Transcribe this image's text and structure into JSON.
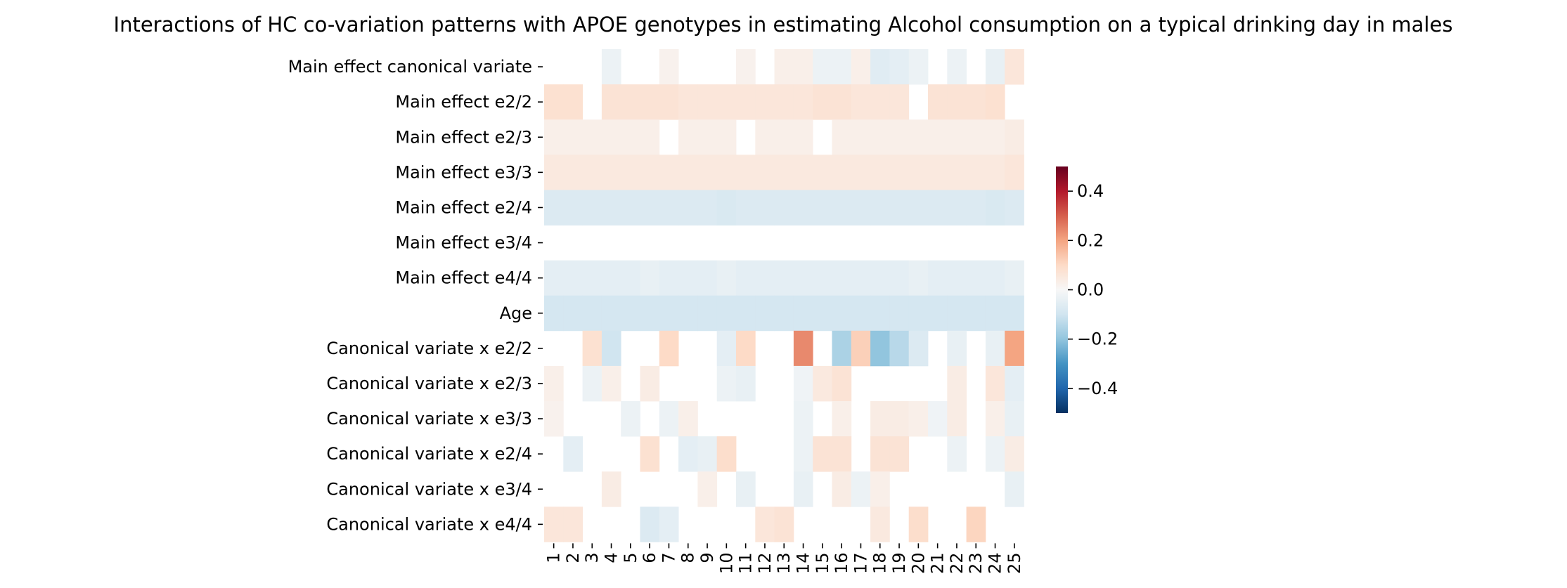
{
  "chart_data": {
    "type": "heatmap",
    "title": "Interactions of HC co-variation patterns with APOE genotypes in estimating Alcohol consumption on a typical drinking day in males",
    "xlabel": "",
    "ylabel": "",
    "x_categories": [
      "1",
      "2",
      "3",
      "4",
      "5",
      "6",
      "7",
      "8",
      "9",
      "10",
      "11",
      "12",
      "13",
      "14",
      "15",
      "16",
      "17",
      "18",
      "19",
      "20",
      "21",
      "22",
      "23",
      "24",
      "25"
    ],
    "y_categories": [
      "Main effect canonical variate",
      "Main effect e2/2",
      "Main effect e2/3",
      "Main effect e3/3",
      "Main effect e2/4",
      "Main effect e3/4",
      "Main effect e4/4",
      "Age",
      "Canonical variate x e2/2",
      "Canonical variate x e2/3",
      "Canonical variate x e3/3",
      "Canonical variate x e2/4",
      "Canonical variate x e3/4",
      "Canonical variate x e4/4"
    ],
    "values": [
      [
        null,
        null,
        null,
        -0.03,
        null,
        null,
        0.02,
        null,
        null,
        null,
        0.02,
        null,
        0.03,
        0.03,
        -0.03,
        -0.03,
        0.03,
        -0.06,
        -0.05,
        -0.03,
        null,
        -0.03,
        null,
        -0.04,
        0.06
      ],
      [
        0.08,
        0.08,
        null,
        0.07,
        0.07,
        0.07,
        0.07,
        0.06,
        0.06,
        0.06,
        0.06,
        0.06,
        0.06,
        0.06,
        0.07,
        0.07,
        0.06,
        0.06,
        0.06,
        null,
        0.07,
        0.07,
        0.07,
        0.08,
        null
      ],
      [
        0.03,
        0.03,
        0.03,
        0.03,
        0.03,
        0.03,
        null,
        0.03,
        0.03,
        0.03,
        null,
        0.03,
        0.03,
        0.03,
        null,
        0.03,
        0.03,
        0.03,
        0.03,
        0.03,
        0.03,
        0.03,
        0.03,
        0.03,
        0.04
      ],
      [
        0.05,
        0.05,
        0.05,
        0.05,
        0.05,
        0.05,
        0.05,
        0.05,
        0.05,
        0.05,
        0.05,
        0.05,
        0.05,
        0.05,
        0.05,
        0.05,
        0.05,
        0.05,
        0.05,
        0.05,
        0.05,
        0.05,
        0.05,
        0.05,
        0.06
      ],
      [
        -0.07,
        -0.07,
        -0.07,
        -0.07,
        -0.07,
        -0.07,
        -0.07,
        -0.07,
        -0.07,
        -0.08,
        -0.07,
        -0.07,
        -0.07,
        -0.07,
        -0.07,
        -0.07,
        -0.07,
        -0.07,
        -0.07,
        -0.07,
        -0.07,
        -0.07,
        -0.07,
        -0.08,
        -0.07
      ],
      [
        null,
        null,
        null,
        null,
        null,
        null,
        null,
        null,
        null,
        null,
        null,
        null,
        null,
        null,
        null,
        null,
        null,
        null,
        null,
        null,
        null,
        null,
        null,
        null,
        null
      ],
      [
        -0.05,
        -0.05,
        -0.05,
        -0.05,
        -0.05,
        -0.04,
        -0.05,
        -0.05,
        -0.05,
        -0.04,
        -0.05,
        -0.05,
        -0.05,
        -0.05,
        -0.05,
        -0.05,
        -0.05,
        -0.05,
        -0.05,
        -0.04,
        -0.05,
        -0.05,
        -0.05,
        -0.05,
        -0.04
      ],
      [
        -0.09,
        -0.09,
        -0.09,
        -0.09,
        -0.09,
        -0.09,
        -0.09,
        -0.09,
        -0.09,
        -0.09,
        -0.09,
        -0.09,
        -0.09,
        -0.09,
        -0.09,
        -0.09,
        -0.09,
        -0.09,
        -0.09,
        -0.09,
        -0.09,
        -0.09,
        -0.09,
        -0.09,
        -0.09
      ],
      [
        null,
        null,
        0.08,
        -0.1,
        null,
        null,
        0.1,
        null,
        null,
        -0.05,
        0.1,
        null,
        null,
        0.24,
        null,
        -0.16,
        0.12,
        -0.2,
        -0.14,
        -0.07,
        null,
        -0.04,
        null,
        -0.04,
        0.2
      ],
      [
        0.03,
        null,
        -0.03,
        0.03,
        null,
        0.04,
        null,
        null,
        null,
        -0.03,
        -0.04,
        null,
        null,
        -0.02,
        0.05,
        0.07,
        null,
        null,
        null,
        null,
        null,
        0.04,
        null,
        0.06,
        -0.05
      ],
      [
        0.02,
        null,
        null,
        null,
        -0.03,
        null,
        -0.03,
        0.03,
        null,
        null,
        null,
        null,
        null,
        -0.03,
        null,
        0.03,
        null,
        0.04,
        0.04,
        0.03,
        -0.02,
        0.04,
        null,
        0.03,
        -0.04
      ],
      [
        null,
        -0.05,
        null,
        null,
        null,
        0.08,
        null,
        -0.05,
        -0.04,
        0.09,
        null,
        null,
        null,
        -0.03,
        0.07,
        0.07,
        null,
        0.07,
        0.07,
        null,
        null,
        -0.03,
        null,
        -0.03,
        0.04
      ],
      [
        null,
        null,
        null,
        0.04,
        null,
        null,
        null,
        null,
        0.03,
        null,
        -0.04,
        null,
        null,
        -0.04,
        null,
        0.04,
        -0.03,
        0.03,
        null,
        null,
        null,
        null,
        null,
        null,
        -0.04
      ],
      [
        0.06,
        0.06,
        null,
        null,
        null,
        -0.07,
        -0.05,
        null,
        null,
        null,
        null,
        0.06,
        0.07,
        null,
        null,
        null,
        null,
        0.05,
        null,
        0.09,
        null,
        null,
        0.11,
        null,
        null
      ]
    ],
    "colorbar": {
      "colormap": "RdBu_r",
      "range": [
        -0.5,
        0.5
      ],
      "ticks": [
        0.4,
        0.2,
        0.0,
        -0.2,
        -0.4
      ],
      "tick_labels": [
        "0.4",
        "0.2",
        "0.0",
        "−0.2",
        "−0.4"
      ]
    },
    "grid": false,
    "legend": "colorbar right"
  }
}
